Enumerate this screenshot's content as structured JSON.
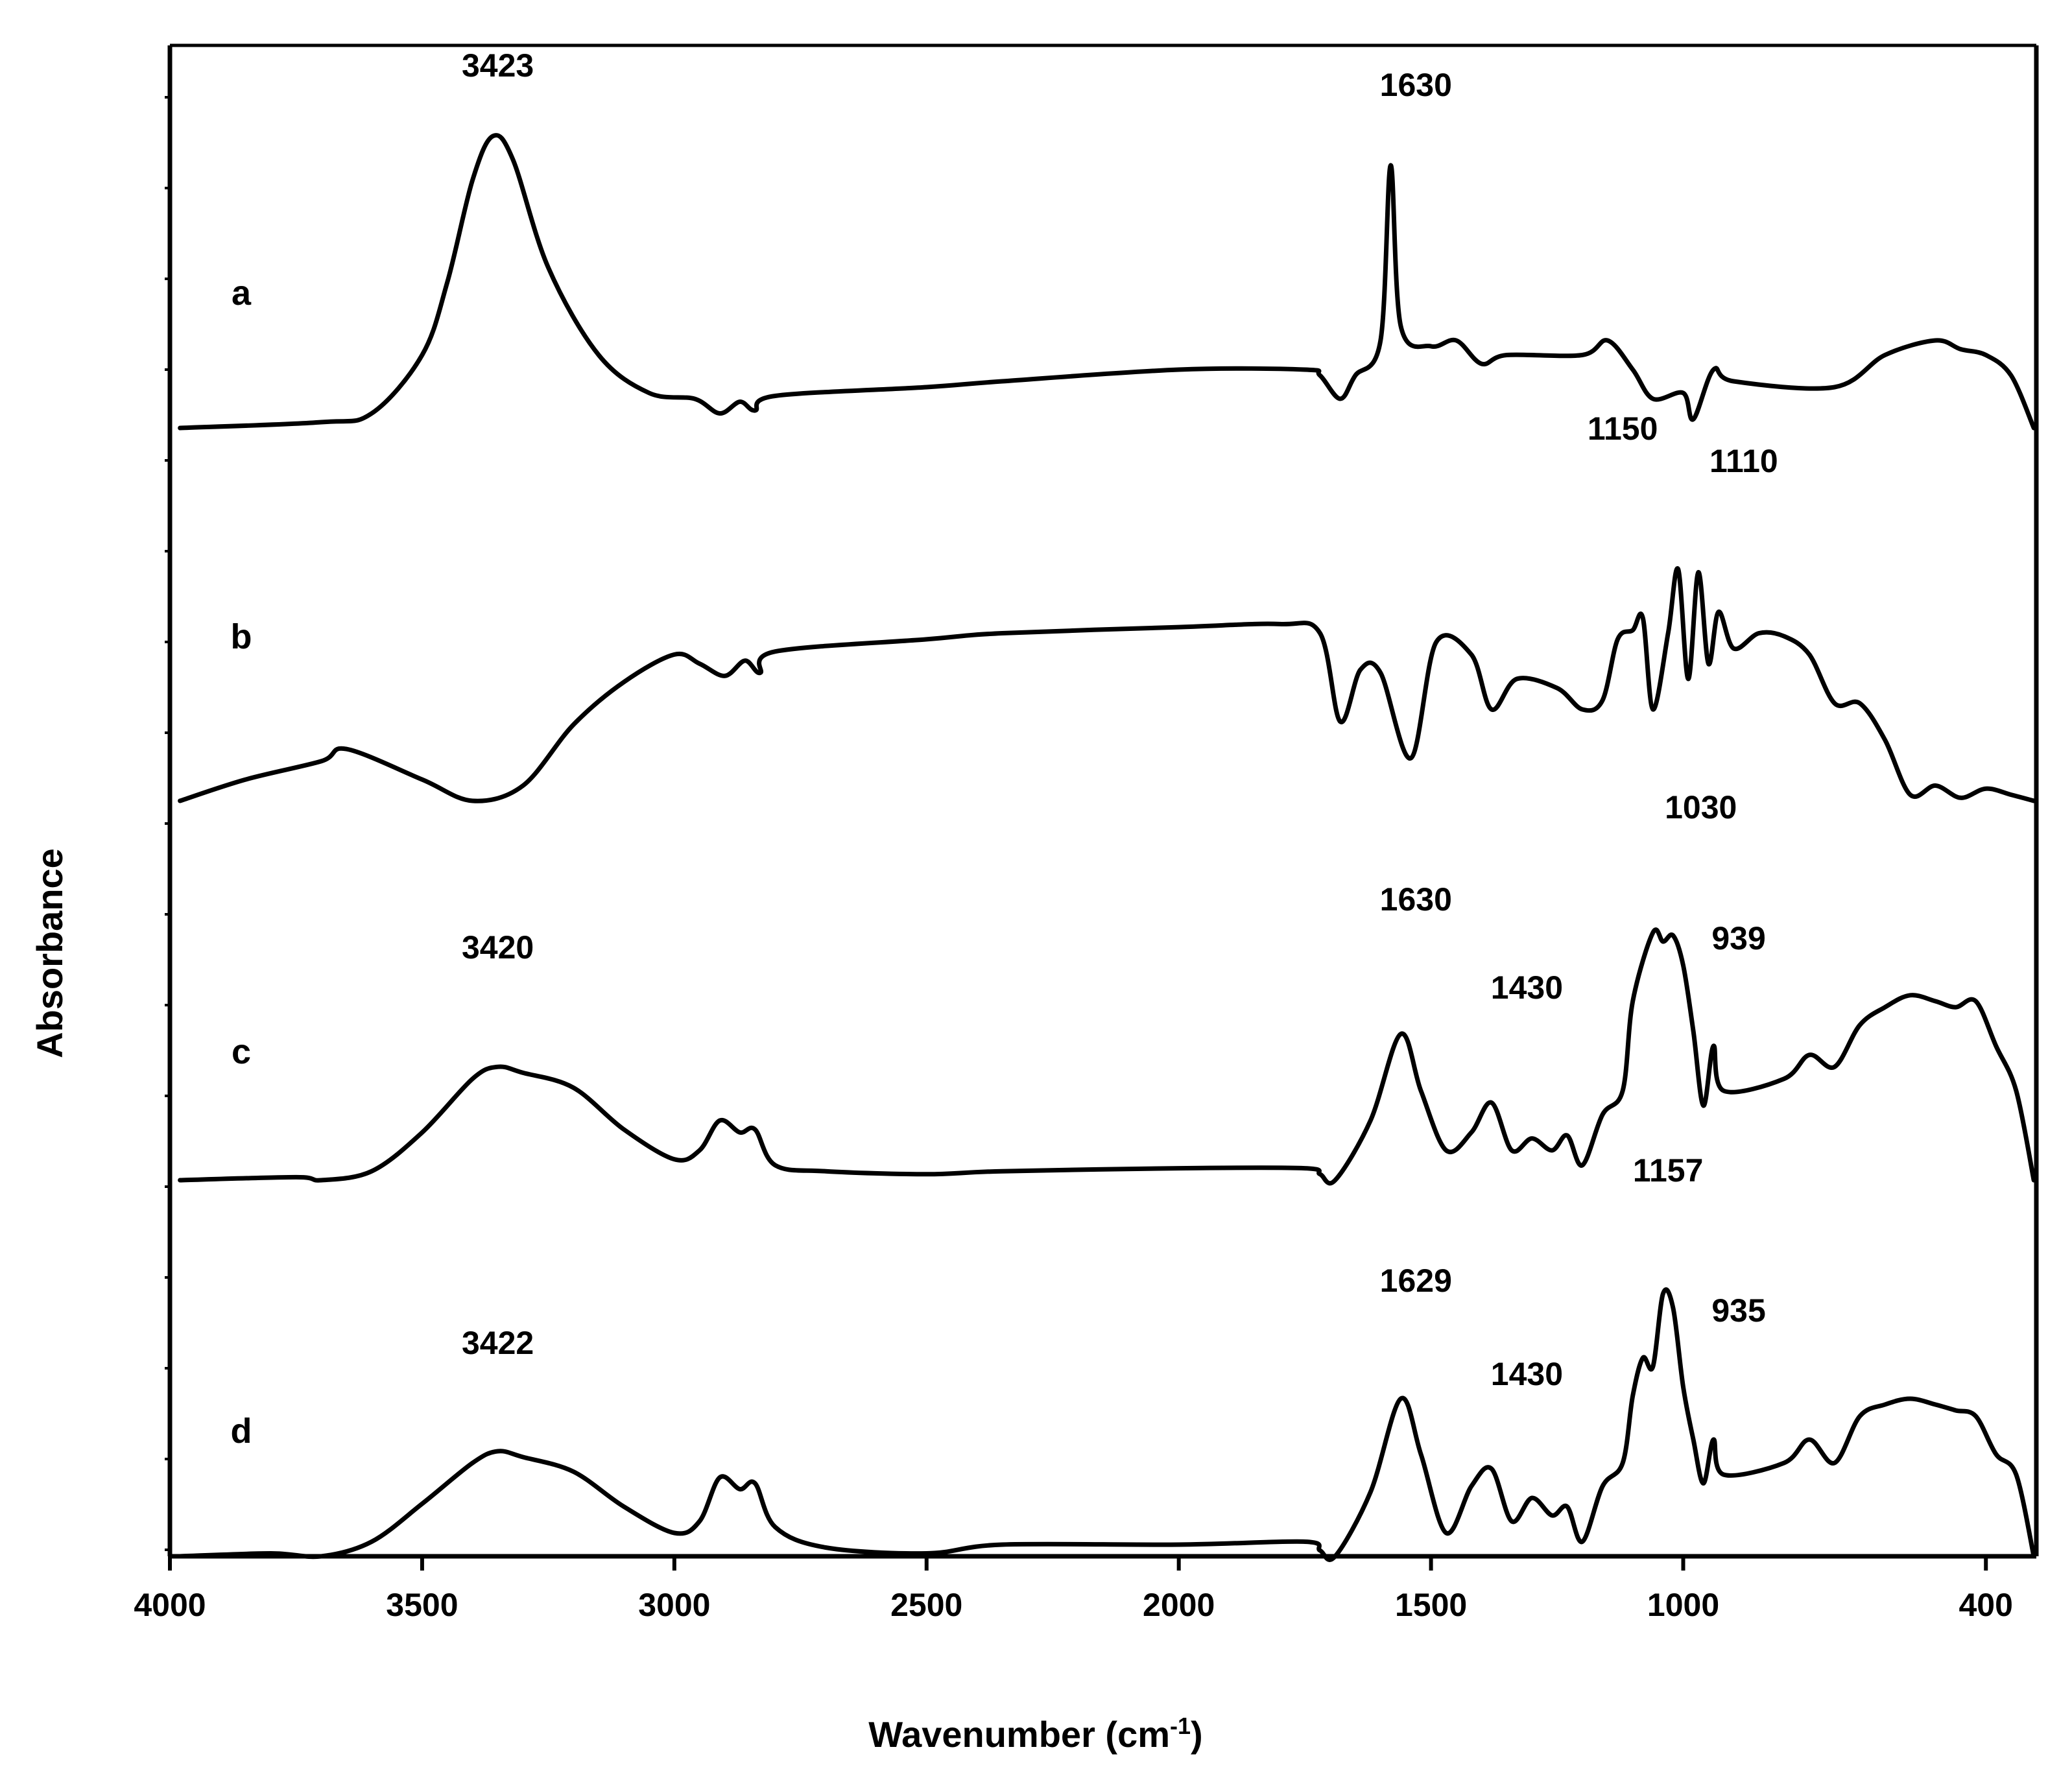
{
  "chart_data": {
    "type": "line",
    "xlabel": "Wavenumber (cm",
    "xlabel_sup": "-1",
    "xlabel_close": ")",
    "ylabel": "Absorbance",
    "x_reversed": true,
    "xlim": [
      4000,
      300
    ],
    "xticks": [
      4000,
      3500,
      3000,
      2500,
      2000,
      1500,
      1000,
      400
    ],
    "xtick_labels": [
      "4000",
      "3500",
      "3000",
      "2500",
      "2000",
      "1500",
      "1000",
      "400"
    ],
    "grid": false,
    "legend": "none",
    "line_color": "#000000",
    "series": [
      {
        "name": "a",
        "points": [
          [
            3980,
            0.0
          ],
          [
            3700,
            0.02
          ],
          [
            3600,
            0.05
          ],
          [
            3500,
            0.25
          ],
          [
            3450,
            0.5
          ],
          [
            3400,
            0.85
          ],
          [
            3360,
            1.0
          ],
          [
            3320,
            0.92
          ],
          [
            3250,
            0.55
          ],
          [
            3150,
            0.25
          ],
          [
            3050,
            0.12
          ],
          [
            2960,
            0.1
          ],
          [
            2910,
            0.05
          ],
          [
            2870,
            0.09
          ],
          [
            2840,
            0.06
          ],
          [
            2800,
            0.11
          ],
          [
            2500,
            0.14
          ],
          [
            2350,
            0.16
          ],
          [
            2000,
            0.2
          ],
          [
            1750,
            0.2
          ],
          [
            1720,
            0.18
          ],
          [
            1680,
            0.1
          ],
          [
            1650,
            0.18
          ],
          [
            1600,
            0.3
          ],
          [
            1580,
            0.9
          ],
          [
            1560,
            0.35
          ],
          [
            1500,
            0.28
          ],
          [
            1450,
            0.3
          ],
          [
            1400,
            0.22
          ],
          [
            1350,
            0.25
          ],
          [
            1200,
            0.25
          ],
          [
            1150,
            0.3
          ],
          [
            1100,
            0.2
          ],
          [
            1060,
            0.1
          ],
          [
            1000,
            0.12
          ],
          [
            980,
            0.03
          ],
          [
            940,
            0.2
          ],
          [
            900,
            0.16
          ],
          [
            700,
            0.14
          ],
          [
            600,
            0.25
          ],
          [
            500,
            0.3
          ],
          [
            450,
            0.27
          ],
          [
            400,
            0.25
          ],
          [
            350,
            0.18
          ],
          [
            305,
            0.0
          ]
        ]
      },
      {
        "name": "b",
        "points": [
          [
            3980,
            0.0
          ],
          [
            3850,
            0.07
          ],
          [
            3700,
            0.13
          ],
          [
            3650,
            0.17
          ],
          [
            3500,
            0.07
          ],
          [
            3400,
            0.0
          ],
          [
            3300,
            0.05
          ],
          [
            3200,
            0.25
          ],
          [
            3100,
            0.39
          ],
          [
            3000,
            0.48
          ],
          [
            2950,
            0.45
          ],
          [
            2900,
            0.41
          ],
          [
            2860,
            0.46
          ],
          [
            2830,
            0.42
          ],
          [
            2800,
            0.49
          ],
          [
            2500,
            0.53
          ],
          [
            2350,
            0.55
          ],
          [
            2000,
            0.57
          ],
          [
            1800,
            0.58
          ],
          [
            1720,
            0.55
          ],
          [
            1680,
            0.26
          ],
          [
            1640,
            0.43
          ],
          [
            1600,
            0.42
          ],
          [
            1540,
            0.14
          ],
          [
            1490,
            0.52
          ],
          [
            1420,
            0.48
          ],
          [
            1380,
            0.3
          ],
          [
            1330,
            0.4
          ],
          [
            1250,
            0.37
          ],
          [
            1200,
            0.3
          ],
          [
            1160,
            0.33
          ],
          [
            1130,
            0.53
          ],
          [
            1100,
            0.56
          ],
          [
            1080,
            0.6
          ],
          [
            1060,
            0.3
          ],
          [
            1030,
            0.55
          ],
          [
            1010,
            0.76
          ],
          [
            990,
            0.4
          ],
          [
            970,
            0.75
          ],
          [
            950,
            0.45
          ],
          [
            930,
            0.62
          ],
          [
            900,
            0.5
          ],
          [
            850,
            0.55
          ],
          [
            800,
            0.54
          ],
          [
            750,
            0.48
          ],
          [
            700,
            0.32
          ],
          [
            650,
            0.32
          ],
          [
            600,
            0.2
          ],
          [
            550,
            0.02
          ],
          [
            500,
            0.05
          ],
          [
            450,
            0.01
          ],
          [
            400,
            0.04
          ],
          [
            350,
            0.02
          ],
          [
            305,
            0.0
          ]
        ]
      },
      {
        "name": "c",
        "points": [
          [
            3980,
            0.0
          ],
          [
            3750,
            0.01
          ],
          [
            3700,
            0.0
          ],
          [
            3600,
            0.03
          ],
          [
            3500,
            0.16
          ],
          [
            3400,
            0.34
          ],
          [
            3350,
            0.38
          ],
          [
            3300,
            0.36
          ],
          [
            3200,
            0.31
          ],
          [
            3100,
            0.17
          ],
          [
            3000,
            0.07
          ],
          [
            2950,
            0.1
          ],
          [
            2910,
            0.2
          ],
          [
            2870,
            0.16
          ],
          [
            2840,
            0.17
          ],
          [
            2800,
            0.05
          ],
          [
            2700,
            0.03
          ],
          [
            2500,
            0.02
          ],
          [
            2350,
            0.03
          ],
          [
            2000,
            0.04
          ],
          [
            1750,
            0.04
          ],
          [
            1720,
            0.02
          ],
          [
            1690,
            0.0
          ],
          [
            1620,
            0.2
          ],
          [
            1560,
            0.49
          ],
          [
            1520,
            0.3
          ],
          [
            1470,
            0.1
          ],
          [
            1420,
            0.16
          ],
          [
            1380,
            0.26
          ],
          [
            1340,
            0.1
          ],
          [
            1300,
            0.14
          ],
          [
            1260,
            0.1
          ],
          [
            1230,
            0.15
          ],
          [
            1200,
            0.05
          ],
          [
            1160,
            0.22
          ],
          [
            1120,
            0.3
          ],
          [
            1100,
            0.6
          ],
          [
            1060,
            0.83
          ],
          [
            1040,
            0.8
          ],
          [
            1020,
            0.82
          ],
          [
            1000,
            0.72
          ],
          [
            980,
            0.5
          ],
          [
            960,
            0.25
          ],
          [
            940,
            0.45
          ],
          [
            920,
            0.3
          ],
          [
            800,
            0.34
          ],
          [
            750,
            0.42
          ],
          [
            700,
            0.38
          ],
          [
            650,
            0.52
          ],
          [
            600,
            0.58
          ],
          [
            550,
            0.62
          ],
          [
            500,
            0.6
          ],
          [
            460,
            0.58
          ],
          [
            420,
            0.6
          ],
          [
            380,
            0.45
          ],
          [
            340,
            0.3
          ],
          [
            305,
            0.0
          ]
        ]
      },
      {
        "name": "d",
        "points": [
          [
            3980,
            0.0
          ],
          [
            3800,
            0.01
          ],
          [
            3700,
            0.0
          ],
          [
            3600,
            0.05
          ],
          [
            3500,
            0.18
          ],
          [
            3400,
            0.32
          ],
          [
            3350,
            0.36
          ],
          [
            3300,
            0.34
          ],
          [
            3200,
            0.29
          ],
          [
            3100,
            0.17
          ],
          [
            3000,
            0.08
          ],
          [
            2950,
            0.12
          ],
          [
            2910,
            0.27
          ],
          [
            2870,
            0.23
          ],
          [
            2840,
            0.25
          ],
          [
            2800,
            0.1
          ],
          [
            2700,
            0.03
          ],
          [
            2500,
            0.01
          ],
          [
            2350,
            0.04
          ],
          [
            2000,
            0.04
          ],
          [
            1750,
            0.05
          ],
          [
            1720,
            0.02
          ],
          [
            1690,
            0.0
          ],
          [
            1620,
            0.22
          ],
          [
            1560,
            0.54
          ],
          [
            1520,
            0.35
          ],
          [
            1470,
            0.08
          ],
          [
            1420,
            0.24
          ],
          [
            1380,
            0.3
          ],
          [
            1340,
            0.12
          ],
          [
            1300,
            0.2
          ],
          [
            1260,
            0.14
          ],
          [
            1230,
            0.17
          ],
          [
            1200,
            0.05
          ],
          [
            1160,
            0.24
          ],
          [
            1120,
            0.32
          ],
          [
            1100,
            0.55
          ],
          [
            1080,
            0.68
          ],
          [
            1060,
            0.65
          ],
          [
            1040,
            0.9
          ],
          [
            1020,
            0.85
          ],
          [
            1000,
            0.58
          ],
          [
            980,
            0.4
          ],
          [
            960,
            0.25
          ],
          [
            940,
            0.4
          ],
          [
            920,
            0.28
          ],
          [
            800,
            0.32
          ],
          [
            750,
            0.4
          ],
          [
            700,
            0.32
          ],
          [
            650,
            0.48
          ],
          [
            600,
            0.52
          ],
          [
            550,
            0.54
          ],
          [
            500,
            0.52
          ],
          [
            460,
            0.5
          ],
          [
            420,
            0.48
          ],
          [
            380,
            0.35
          ],
          [
            340,
            0.28
          ],
          [
            305,
            0.0
          ]
        ]
      }
    ],
    "annotations": [
      {
        "text": "3423",
        "series": "a",
        "wn": 3350
      },
      {
        "text": "1630",
        "series": "a",
        "wn": 1530
      },
      {
        "text": "1150",
        "series": "b",
        "wn": 1120
      },
      {
        "text": "1110",
        "series": "b",
        "wn": 880
      },
      {
        "text": "1030",
        "series": "c",
        "wn": 965
      },
      {
        "text": "1630",
        "series": "c",
        "wn": 1530
      },
      {
        "text": "3420",
        "series": "c",
        "wn": 3350
      },
      {
        "text": "1430",
        "series": "c",
        "wn": 1310
      },
      {
        "text": "939",
        "series": "c",
        "wn": 890
      },
      {
        "text": "1157",
        "series": "d",
        "wn": 1030
      },
      {
        "text": "1629",
        "series": "d",
        "wn": 1530
      },
      {
        "text": "935",
        "series": "d",
        "wn": 890
      },
      {
        "text": "3422",
        "series": "d",
        "wn": 3350
      },
      {
        "text": "1430",
        "series": "d",
        "wn": 1310
      }
    ]
  }
}
